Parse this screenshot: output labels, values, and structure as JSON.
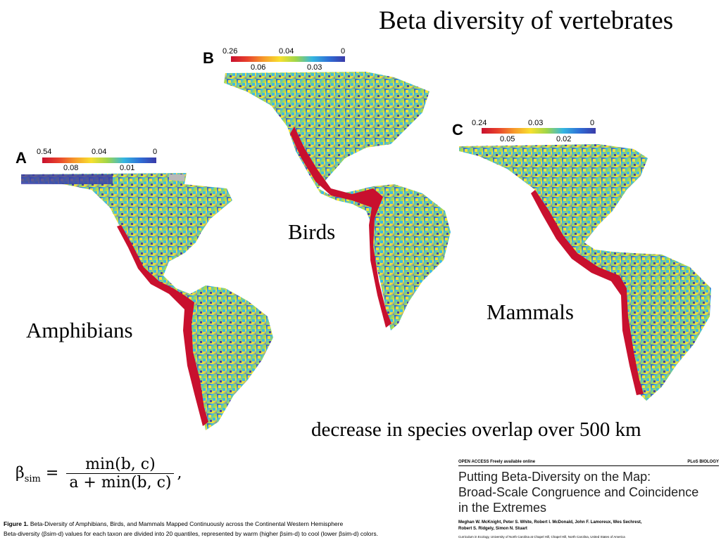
{
  "title": "Beta diversity of vertebrates",
  "panels": [
    {
      "letter": "A",
      "taxon": "Amphibians",
      "ticks_top": [
        "0.54",
        "0.04",
        "0"
      ],
      "ticks_bottom": [
        "0.08",
        "0.01"
      ]
    },
    {
      "letter": "B",
      "taxon": "Birds",
      "ticks_top": [
        "0.26",
        "0.04",
        "0"
      ],
      "ticks_bottom": [
        "0.06",
        "0.03"
      ]
    },
    {
      "letter": "C",
      "taxon": "Mammals",
      "ticks_top": [
        "0.24",
        "0.03",
        "0"
      ],
      "ticks_bottom": [
        "0.05",
        "0.02"
      ]
    }
  ],
  "colorscale": [
    "#c8102e",
    "#e8412c",
    "#f79a2b",
    "#f7e02e",
    "#9fd64a",
    "#35b6e0",
    "#2f6fd6",
    "#3a3aa8"
  ],
  "decrease_text": "decrease in species overlap over 500 km",
  "formula": {
    "lhs": "β",
    "sub": "sim",
    "numerator": "min(b, c)",
    "denominator": "a + min(b, c)"
  },
  "figure_caption": {
    "label": "Figure 1.",
    "line1": "Beta-Diversity of Amphibians, Birds, and Mammals Mapped Continuously across the Continental Western Hemisphere",
    "line2": "Beta-diversity (βsim-d) values for each taxon are divided into 20 quantiles, represented by warm (higher βsim-d) to cool (lower βsim-d) colors."
  },
  "paper": {
    "header_left": "OPEN ACCESS Freely available online",
    "header_right": "PLoS BIOLOGY",
    "title_lines": [
      "Putting Beta-Diversity on the Map:",
      "Broad-Scale Congruence and Coincidence",
      "in the Extremes"
    ],
    "authors_line1": "Meghan W. McKnight, Peter S. White, Robert I. McDonald, John F. Lamoreux, Wes Sechrest,",
    "authors_line2": "Robert S. Ridgely, Simon N. Stuart",
    "affiliation": "Curriculum in Ecology, University of North Carolina at Chapel Hill, Chapel Hill, North Carolina, United States of America"
  }
}
